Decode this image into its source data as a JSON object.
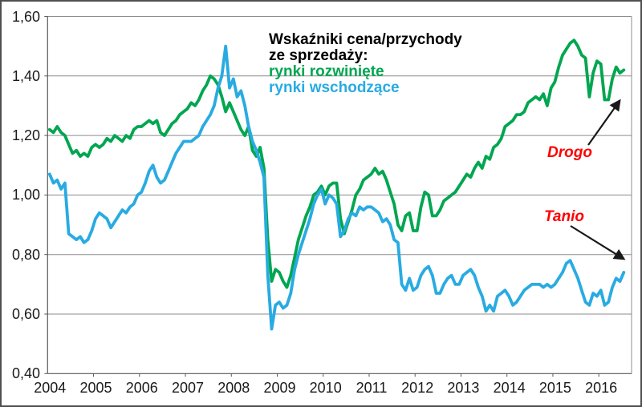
{
  "chart_data": {
    "type": "line",
    "title_lines": [
      "Wskaźniki cena/przychody",
      "ze sprzedaży:"
    ],
    "legend": [
      {
        "label": "rynki rozwinięte",
        "color": "#00a650"
      },
      {
        "label": "rynki wschodzące",
        "color": "#29abe2"
      }
    ],
    "y_axis": {
      "min": 0.4,
      "max": 1.6,
      "step": 0.2,
      "tick_labels": [
        "1,60",
        "1,40",
        "1,20",
        "1,00",
        "0,80",
        "0,60",
        "0,40"
      ]
    },
    "x_axis": {
      "tick_labels": [
        "2004",
        "2005",
        "2006",
        "2007",
        "2008",
        "2009",
        "2010",
        "2011",
        "2012",
        "2013",
        "2014",
        "2015",
        "2016"
      ]
    },
    "grid": true,
    "legend_position": "inside-top",
    "annotations": [
      {
        "text": "Drogo",
        "color": "#ff0000"
      },
      {
        "text": "Tanio",
        "color": "#ff0000"
      }
    ],
    "colors": {
      "grid": "#8c8c8c",
      "axis": "#595959",
      "text": "#1a1a1a",
      "arrow": "#1a1a1a",
      "background": "#ffffff",
      "border": "#4f4f4f"
    },
    "points_per_year": 12,
    "start_year": 2004,
    "series": [
      {
        "name": "rynki rozwinięte",
        "color": "#00a650",
        "values": [
          1.22,
          1.21,
          1.23,
          1.21,
          1.2,
          1.17,
          1.14,
          1.15,
          1.13,
          1.14,
          1.13,
          1.16,
          1.17,
          1.16,
          1.17,
          1.19,
          1.18,
          1.2,
          1.19,
          1.18,
          1.2,
          1.19,
          1.22,
          1.23,
          1.23,
          1.24,
          1.25,
          1.24,
          1.25,
          1.21,
          1.2,
          1.22,
          1.24,
          1.25,
          1.27,
          1.28,
          1.29,
          1.31,
          1.3,
          1.32,
          1.35,
          1.37,
          1.4,
          1.39,
          1.37,
          1.33,
          1.28,
          1.31,
          1.28,
          1.25,
          1.22,
          1.2,
          1.23,
          1.15,
          1.13,
          1.16,
          1.09,
          0.85,
          0.71,
          0.75,
          0.74,
          0.71,
          0.69,
          0.73,
          0.79,
          0.85,
          0.89,
          0.93,
          0.96,
          1.0,
          1.01,
          1.03,
          1.0,
          1.03,
          1.04,
          1.04,
          0.92,
          0.87,
          0.91,
          0.95,
          1.0,
          1.02,
          1.05,
          1.06,
          1.07,
          1.09,
          1.07,
          1.08,
          1.05,
          1.01,
          0.97,
          0.9,
          0.88,
          0.93,
          0.94,
          0.88,
          0.88,
          0.96,
          1.01,
          1.0,
          0.93,
          0.93,
          0.95,
          0.98,
          0.99,
          1.0,
          1.01,
          1.03,
          1.05,
          1.07,
          1.06,
          1.09,
          1.11,
          1.09,
          1.13,
          1.12,
          1.16,
          1.17,
          1.19,
          1.23,
          1.24,
          1.25,
          1.27,
          1.27,
          1.28,
          1.31,
          1.32,
          1.33,
          1.32,
          1.34,
          1.3,
          1.36,
          1.38,
          1.43,
          1.47,
          1.49,
          1.51,
          1.52,
          1.5,
          1.47,
          1.46,
          1.33,
          1.41,
          1.45,
          1.44,
          1.32,
          1.32,
          1.39,
          1.43,
          1.41,
          1.42
        ]
      },
      {
        "name": "rynki wschodzące",
        "color": "#29abe2",
        "values": [
          1.07,
          1.04,
          1.05,
          1.02,
          1.04,
          0.87,
          0.86,
          0.85,
          0.86,
          0.84,
          0.85,
          0.88,
          0.92,
          0.94,
          0.93,
          0.92,
          0.89,
          0.91,
          0.93,
          0.95,
          0.94,
          0.96,
          0.97,
          1.0,
          1.01,
          1.04,
          1.08,
          1.1,
          1.06,
          1.04,
          1.05,
          1.08,
          1.11,
          1.14,
          1.16,
          1.18,
          1.18,
          1.18,
          1.19,
          1.2,
          1.23,
          1.25,
          1.27,
          1.3,
          1.36,
          1.4,
          1.5,
          1.36,
          1.39,
          1.33,
          1.35,
          1.3,
          1.23,
          1.18,
          1.15,
          1.11,
          1.06,
          0.73,
          0.55,
          0.63,
          0.64,
          0.62,
          0.63,
          0.67,
          0.75,
          0.8,
          0.84,
          0.88,
          0.92,
          0.97,
          1.0,
          1.02,
          0.97,
          1.0,
          0.99,
          0.97,
          0.86,
          0.88,
          0.92,
          0.94,
          0.93,
          0.96,
          0.95,
          0.96,
          0.96,
          0.95,
          0.94,
          0.91,
          0.92,
          0.9,
          0.85,
          0.84,
          0.7,
          0.68,
          0.72,
          0.68,
          0.69,
          0.73,
          0.75,
          0.76,
          0.73,
          0.67,
          0.67,
          0.7,
          0.72,
          0.73,
          0.7,
          0.7,
          0.73,
          0.74,
          0.75,
          0.73,
          0.69,
          0.66,
          0.61,
          0.63,
          0.61,
          0.66,
          0.67,
          0.68,
          0.66,
          0.63,
          0.64,
          0.66,
          0.68,
          0.69,
          0.7,
          0.7,
          0.7,
          0.69,
          0.7,
          0.69,
          0.7,
          0.72,
          0.74,
          0.77,
          0.78,
          0.75,
          0.72,
          0.68,
          0.64,
          0.63,
          0.67,
          0.66,
          0.68,
          0.63,
          0.64,
          0.69,
          0.72,
          0.71,
          0.74
        ]
      }
    ]
  }
}
